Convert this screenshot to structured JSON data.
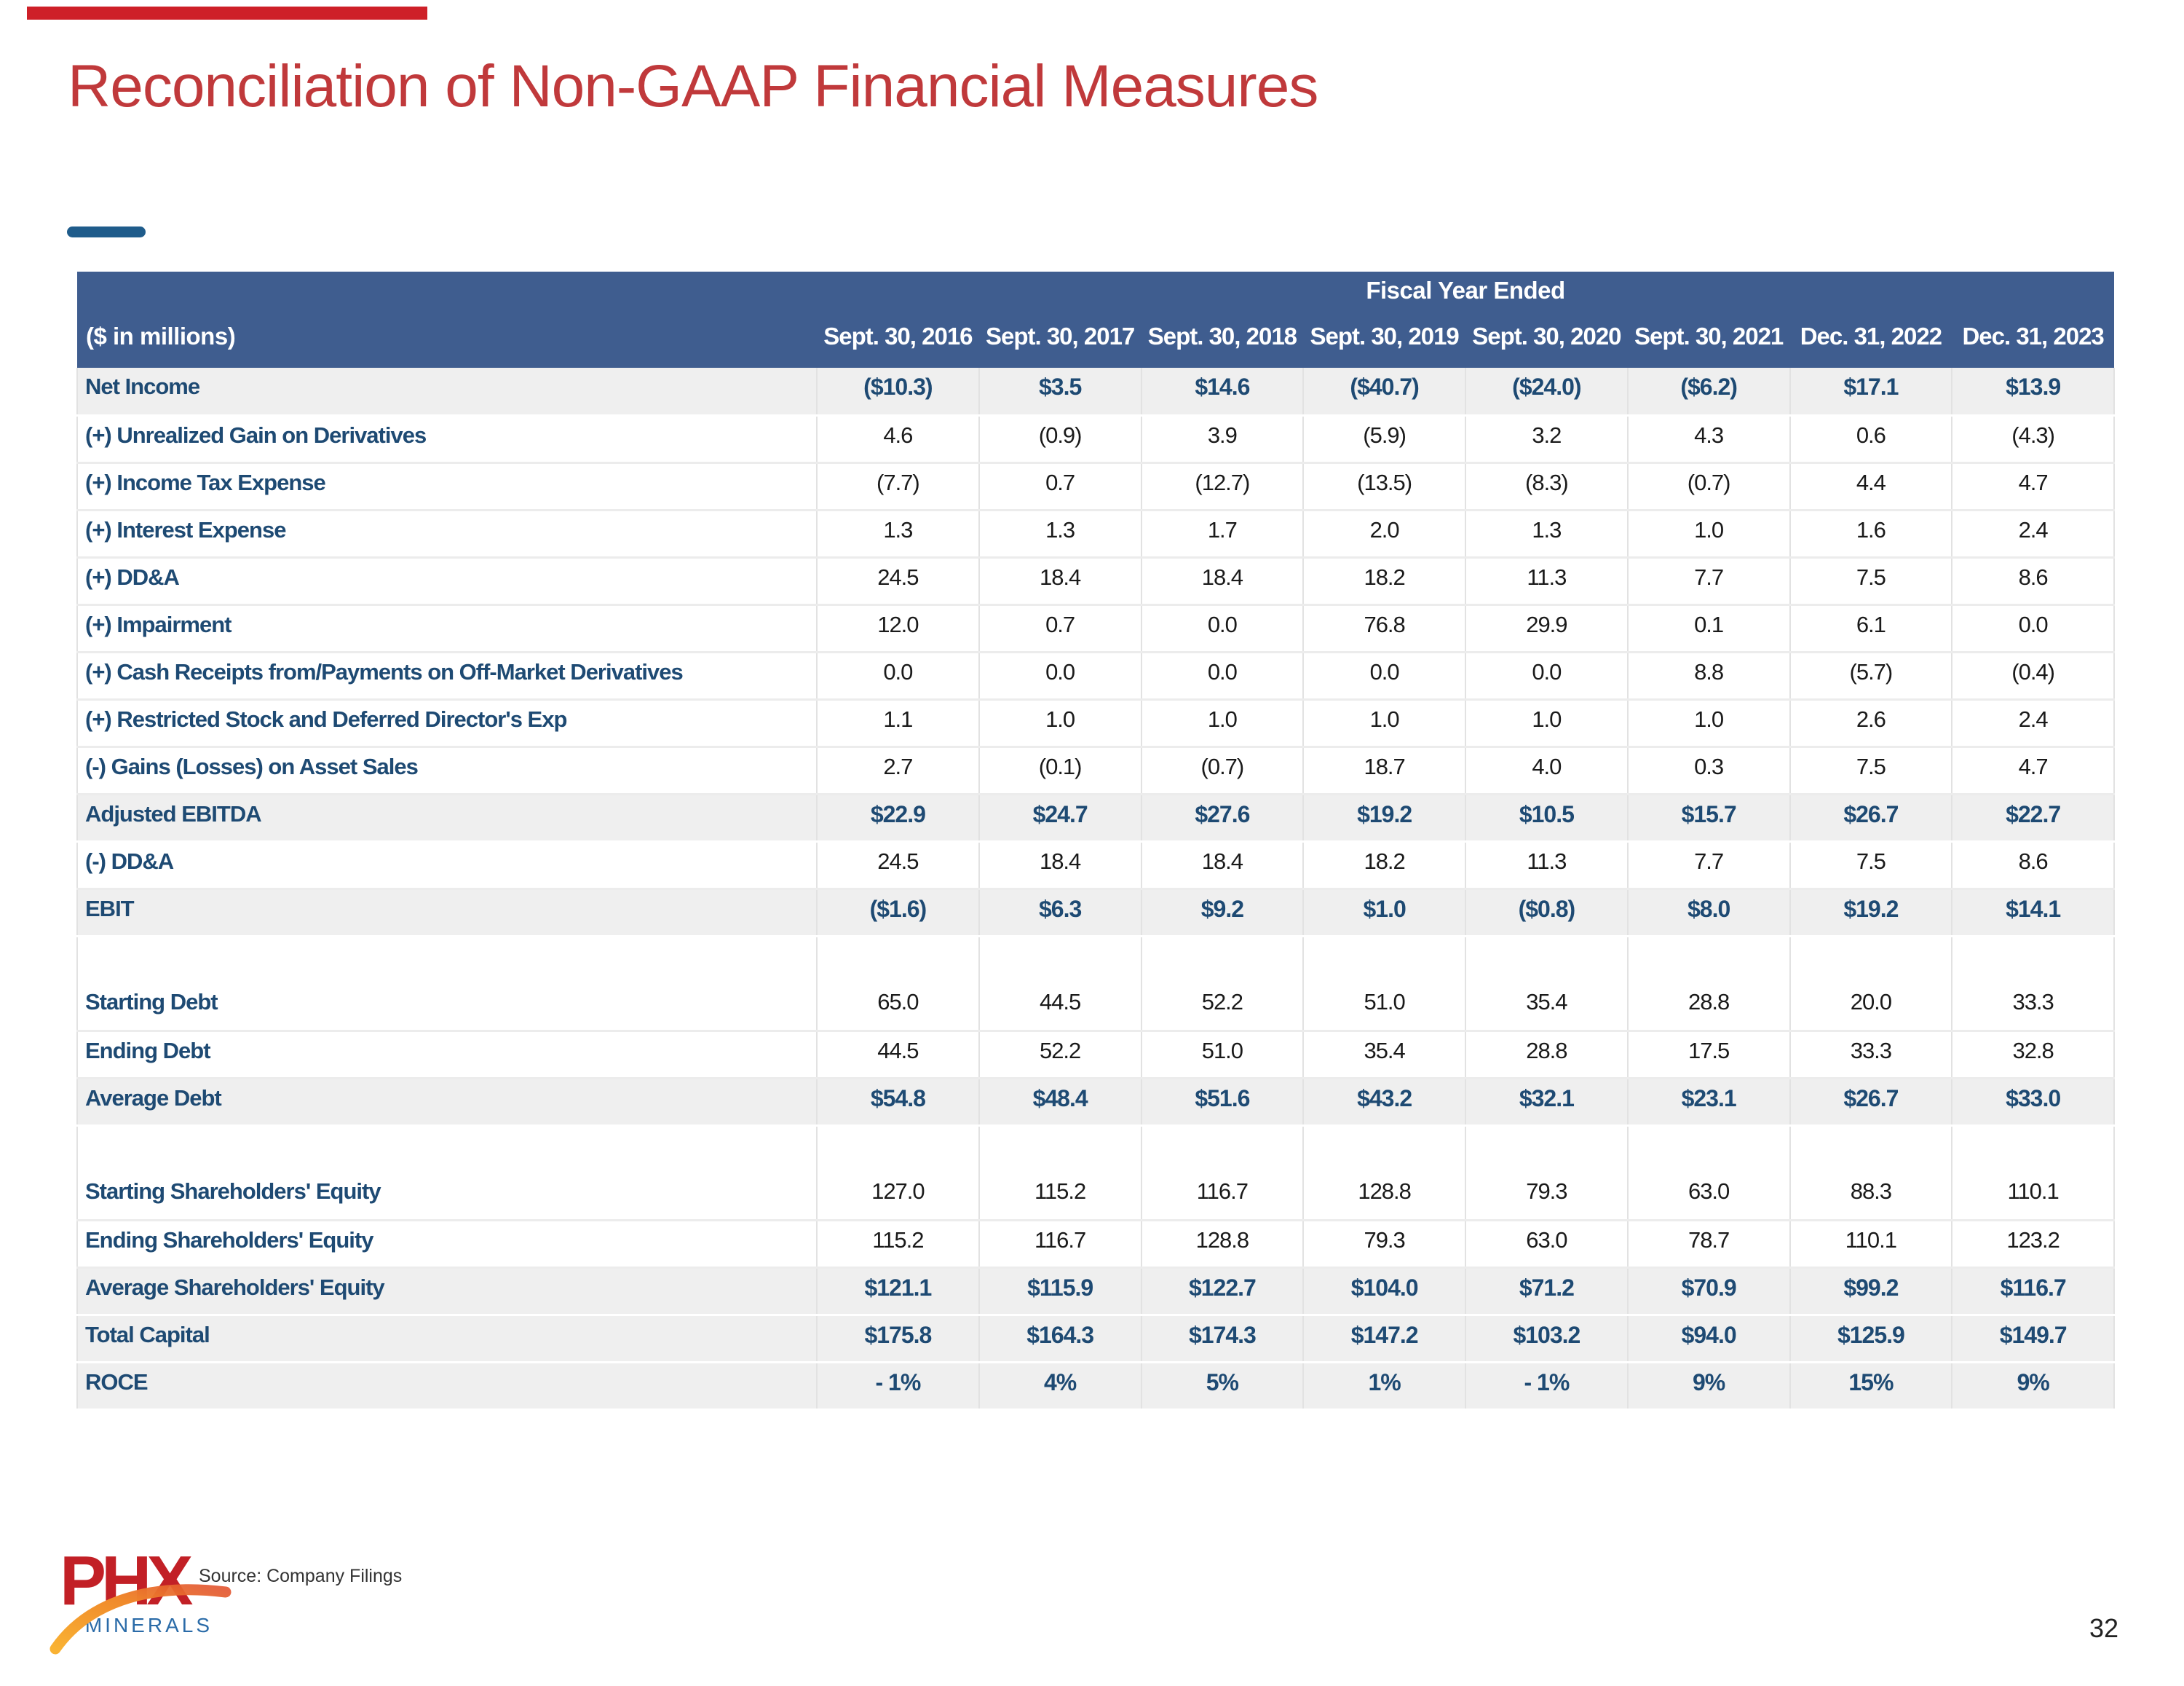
{
  "slide": {
    "title": "Reconciliation of Non-GAAP Financial Measures",
    "source_note": "Source: Company Filings",
    "page_number": "32",
    "logo": {
      "text": "PHX",
      "subtext": "MINERALS"
    },
    "colors": {
      "title_red": "#C0393B",
      "bar_red": "#CE2028",
      "header_blue": "#3F5D8F",
      "navy": "#1E4A73",
      "subtotal_bg": "#EFEFEF",
      "dash_blue": "#1F5C8B",
      "logo_red": "#C22026",
      "logo_orange": "#F7A823",
      "logo_blue": "#2A6BA8"
    }
  },
  "table": {
    "group_header": "Fiscal Year Ended",
    "row_header_label": "($ in millions)",
    "columns": [
      "Sept. 30, 2016",
      "Sept. 30, 2017",
      "Sept. 30, 2018",
      "Sept. 30, 2019",
      "Sept. 30, 2020",
      "Sept. 30, 2021",
      "Dec. 31, 2022",
      "Dec. 31, 2023"
    ],
    "rows": [
      {
        "label": "Net Income",
        "style": "subtotal",
        "values": [
          "($10.3)",
          "$3.5",
          "$14.6",
          "($40.7)",
          "($24.0)",
          "($6.2)",
          "$17.1",
          "$13.9"
        ]
      },
      {
        "label": "(+) Unrealized Gain on Derivatives",
        "style": "normal",
        "values": [
          "4.6",
          "(0.9)",
          "3.9",
          "(5.9)",
          "3.2",
          "4.3",
          "0.6",
          "(4.3)"
        ]
      },
      {
        "label": "(+) Income Tax Expense",
        "style": "normal",
        "values": [
          "(7.7)",
          "0.7",
          "(12.7)",
          "(13.5)",
          "(8.3)",
          "(0.7)",
          "4.4",
          "4.7"
        ]
      },
      {
        "label": "(+) Interest Expense",
        "style": "normal",
        "values": [
          "1.3",
          "1.3",
          "1.7",
          "2.0",
          "1.3",
          "1.0",
          "1.6",
          "2.4"
        ]
      },
      {
        "label": "(+) DD&A",
        "style": "normal",
        "values": [
          "24.5",
          "18.4",
          "18.4",
          "18.2",
          "11.3",
          "7.7",
          "7.5",
          "8.6"
        ]
      },
      {
        "label": "(+) Impairment",
        "style": "normal",
        "values": [
          "12.0",
          "0.7",
          "0.0",
          "76.8",
          "29.9",
          "0.1",
          "6.1",
          "0.0"
        ]
      },
      {
        "label": "(+) Cash Receipts from/Payments on Off-Market Derivatives",
        "style": "normal",
        "values": [
          "0.0",
          "0.0",
          "0.0",
          "0.0",
          "0.0",
          "8.8",
          "(5.7)",
          "(0.4)"
        ]
      },
      {
        "label": "(+) Restricted Stock and Deferred Director's Exp",
        "style": "normal",
        "values": [
          "1.1",
          "1.0",
          "1.0",
          "1.0",
          "1.0",
          "1.0",
          "2.6",
          "2.4"
        ]
      },
      {
        "label": "(-) Gains (Losses) on Asset Sales",
        "style": "normal",
        "values": [
          "2.7",
          "(0.1)",
          "(0.7)",
          "18.7",
          "4.0",
          "0.3",
          "7.5",
          "4.7"
        ]
      },
      {
        "label": "Adjusted EBITDA",
        "style": "subtotal",
        "values": [
          "$22.9",
          "$24.7",
          "$27.6",
          "$19.2",
          "$10.5",
          "$15.7",
          "$26.7",
          "$22.7"
        ]
      },
      {
        "label": "(-) DD&A",
        "style": "normal",
        "values": [
          "24.5",
          "18.4",
          "18.4",
          "18.2",
          "11.3",
          "7.7",
          "7.5",
          "8.6"
        ]
      },
      {
        "label": "EBIT",
        "style": "subtotal",
        "values": [
          "($1.6)",
          "$6.3",
          "$9.2",
          "$1.0",
          "($0.8)",
          "$8.0",
          "$19.2",
          "$14.1"
        ]
      },
      {
        "label": "",
        "style": "spacer",
        "values": [
          "",
          "",
          "",
          "",
          "",
          "",
          "",
          ""
        ]
      },
      {
        "label": "Starting Debt",
        "style": "normal",
        "values": [
          "65.0",
          "44.5",
          "52.2",
          "51.0",
          "35.4",
          "28.8",
          "20.0",
          "33.3"
        ]
      },
      {
        "label": "Ending Debt",
        "style": "normal",
        "values": [
          "44.5",
          "52.2",
          "51.0",
          "35.4",
          "28.8",
          "17.5",
          "33.3",
          "32.8"
        ]
      },
      {
        "label": "Average Debt",
        "style": "subtotal",
        "values": [
          "$54.8",
          "$48.4",
          "$51.6",
          "$43.2",
          "$32.1",
          "$23.1",
          "$26.7",
          "$33.0"
        ]
      },
      {
        "label": "",
        "style": "spacer",
        "values": [
          "",
          "",
          "",
          "",
          "",
          "",
          "",
          ""
        ]
      },
      {
        "label": "Starting Shareholders' Equity",
        "style": "normal",
        "values": [
          "127.0",
          "115.2",
          "116.7",
          "128.8",
          "79.3",
          "63.0",
          "88.3",
          "110.1"
        ]
      },
      {
        "label": "Ending Shareholders' Equity",
        "style": "normal",
        "values": [
          "115.2",
          "116.7",
          "128.8",
          "79.3",
          "63.0",
          "78.7",
          "110.1",
          "123.2"
        ]
      },
      {
        "label": "Average Shareholders' Equity",
        "style": "subtotal",
        "values": [
          "$121.1",
          "$115.9",
          "$122.7",
          "$104.0",
          "$71.2",
          "$70.9",
          "$99.2",
          "$116.7"
        ]
      },
      {
        "label": "Total Capital",
        "style": "subtotal",
        "values": [
          "$175.8",
          "$164.3",
          "$174.3",
          "$147.2",
          "$103.2",
          "$94.0",
          "$125.9",
          "$149.7"
        ]
      },
      {
        "label": "ROCE",
        "style": "subtotal",
        "values": [
          "- 1%",
          "4%",
          "5%",
          "1%",
          "- 1%",
          "9%",
          "15%",
          "9%"
        ]
      }
    ]
  }
}
